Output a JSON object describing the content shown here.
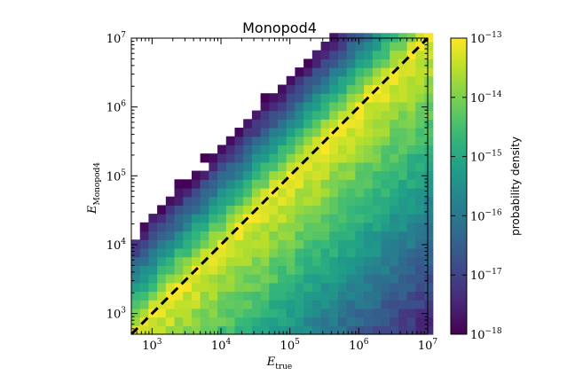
{
  "chart_data": {
    "type": "heatmap",
    "title": "Monopod4",
    "xlabel": {
      "main": "E",
      "sub": "true"
    },
    "ylabel": {
      "main": "E",
      "sub": "Monopod4"
    },
    "xscale": "log",
    "yscale": "log",
    "xlim": [
      500,
      10000000
    ],
    "ylim": [
      500,
      10000000
    ],
    "x_ticks": [
      {
        "value": 1000,
        "base": "10",
        "exp": "3"
      },
      {
        "value": 10000,
        "base": "10",
        "exp": "4"
      },
      {
        "value": 100000,
        "base": "10",
        "exp": "5"
      },
      {
        "value": 1000000,
        "base": "10",
        "exp": "6"
      },
      {
        "value": 10000000,
        "base": "10",
        "exp": "7"
      }
    ],
    "y_ticks": [
      {
        "value": 1000,
        "base": "10",
        "exp": "3"
      },
      {
        "value": 10000,
        "base": "10",
        "exp": "4"
      },
      {
        "value": 100000,
        "base": "10",
        "exp": "5"
      },
      {
        "value": 1000000,
        "base": "10",
        "exp": "6"
      },
      {
        "value": 10000000,
        "base": "10",
        "exp": "7"
      }
    ],
    "bins_per_decade": 8,
    "diagonal_line": {
      "style": "dashed",
      "color": "#000000",
      "from": [
        500,
        500
      ],
      "to": [
        10000000,
        10000000
      ]
    },
    "colorbar": {
      "label": "probability density",
      "scale": "log",
      "range": [
        1e-18,
        1e-13
      ],
      "colormap": "viridis",
      "ticks": [
        {
          "value": 1e-18,
          "base": "10",
          "exp": "−18"
        },
        {
          "value": 1e-17,
          "base": "10",
          "exp": "−17"
        },
        {
          "value": 1e-16,
          "base": "10",
          "exp": "−16"
        },
        {
          "value": 1e-15,
          "base": "10",
          "exp": "−15"
        },
        {
          "value": 1e-14,
          "base": "10",
          "exp": "−14"
        },
        {
          "value": 1e-13,
          "base": "10",
          "exp": "−13"
        }
      ]
    },
    "density_model": {
      "peak_log10_density": -13.1,
      "falloff_above_diagonal_per_decade": 3.4,
      "falloff_below_diagonal_per_decade": 1.05,
      "low_energy_attenuation": 0.35,
      "min_visible_log10_density": -18
    },
    "grid": false,
    "legend": "none"
  }
}
